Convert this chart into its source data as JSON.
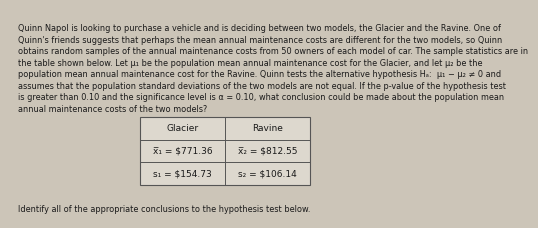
{
  "background_color": "#ccc5b8",
  "text_color": "#1a1a1a",
  "paragraph_lines": [
    "Quinn Napol is looking to purchase a vehicle and is deciding between two models, the Glacier and the Ravine. One of",
    "Quinn's friends suggests that perhaps the mean annual maintenance costs are different for the two models, so Quinn",
    "obtains random samples of the annual maintenance costs from 50 owners of each model of car. The sample statistics are in",
    "the table shown below. Let μ₁ be the population mean annual maintenance cost for the Glacier, and let μ₂ be the",
    "population mean annual maintenance cost for the Ravine. Quinn tests the alternative hypothesis Hₐ:  μ₁ − μ₂ ≠ 0 and",
    "assumes that the population standard deviations of the two models are not equal. If the p-value of the hypothesis test",
    "is greater than 0.10 and the significance level is α = 0.10, what conclusion could be made about the population mean",
    "annual maintenance costs of the two models?"
  ],
  "footer": "Identify all of the appropriate conclusions to the hypothesis test below.",
  "table_headers": [
    "Glacier",
    "Ravine"
  ],
  "table_row1": [
    "x̅₁ = $771.36",
    "x̅₂ = $812.55"
  ],
  "table_row2": [
    "s₁ = $154.73",
    "s₂ = $106.14"
  ],
  "para_fontsize": 5.9,
  "footer_fontsize": 5.9,
  "table_header_fontsize": 6.5,
  "table_data_fontsize": 6.5,
  "table_bg": "#ddd8ce",
  "table_border": "#555555"
}
